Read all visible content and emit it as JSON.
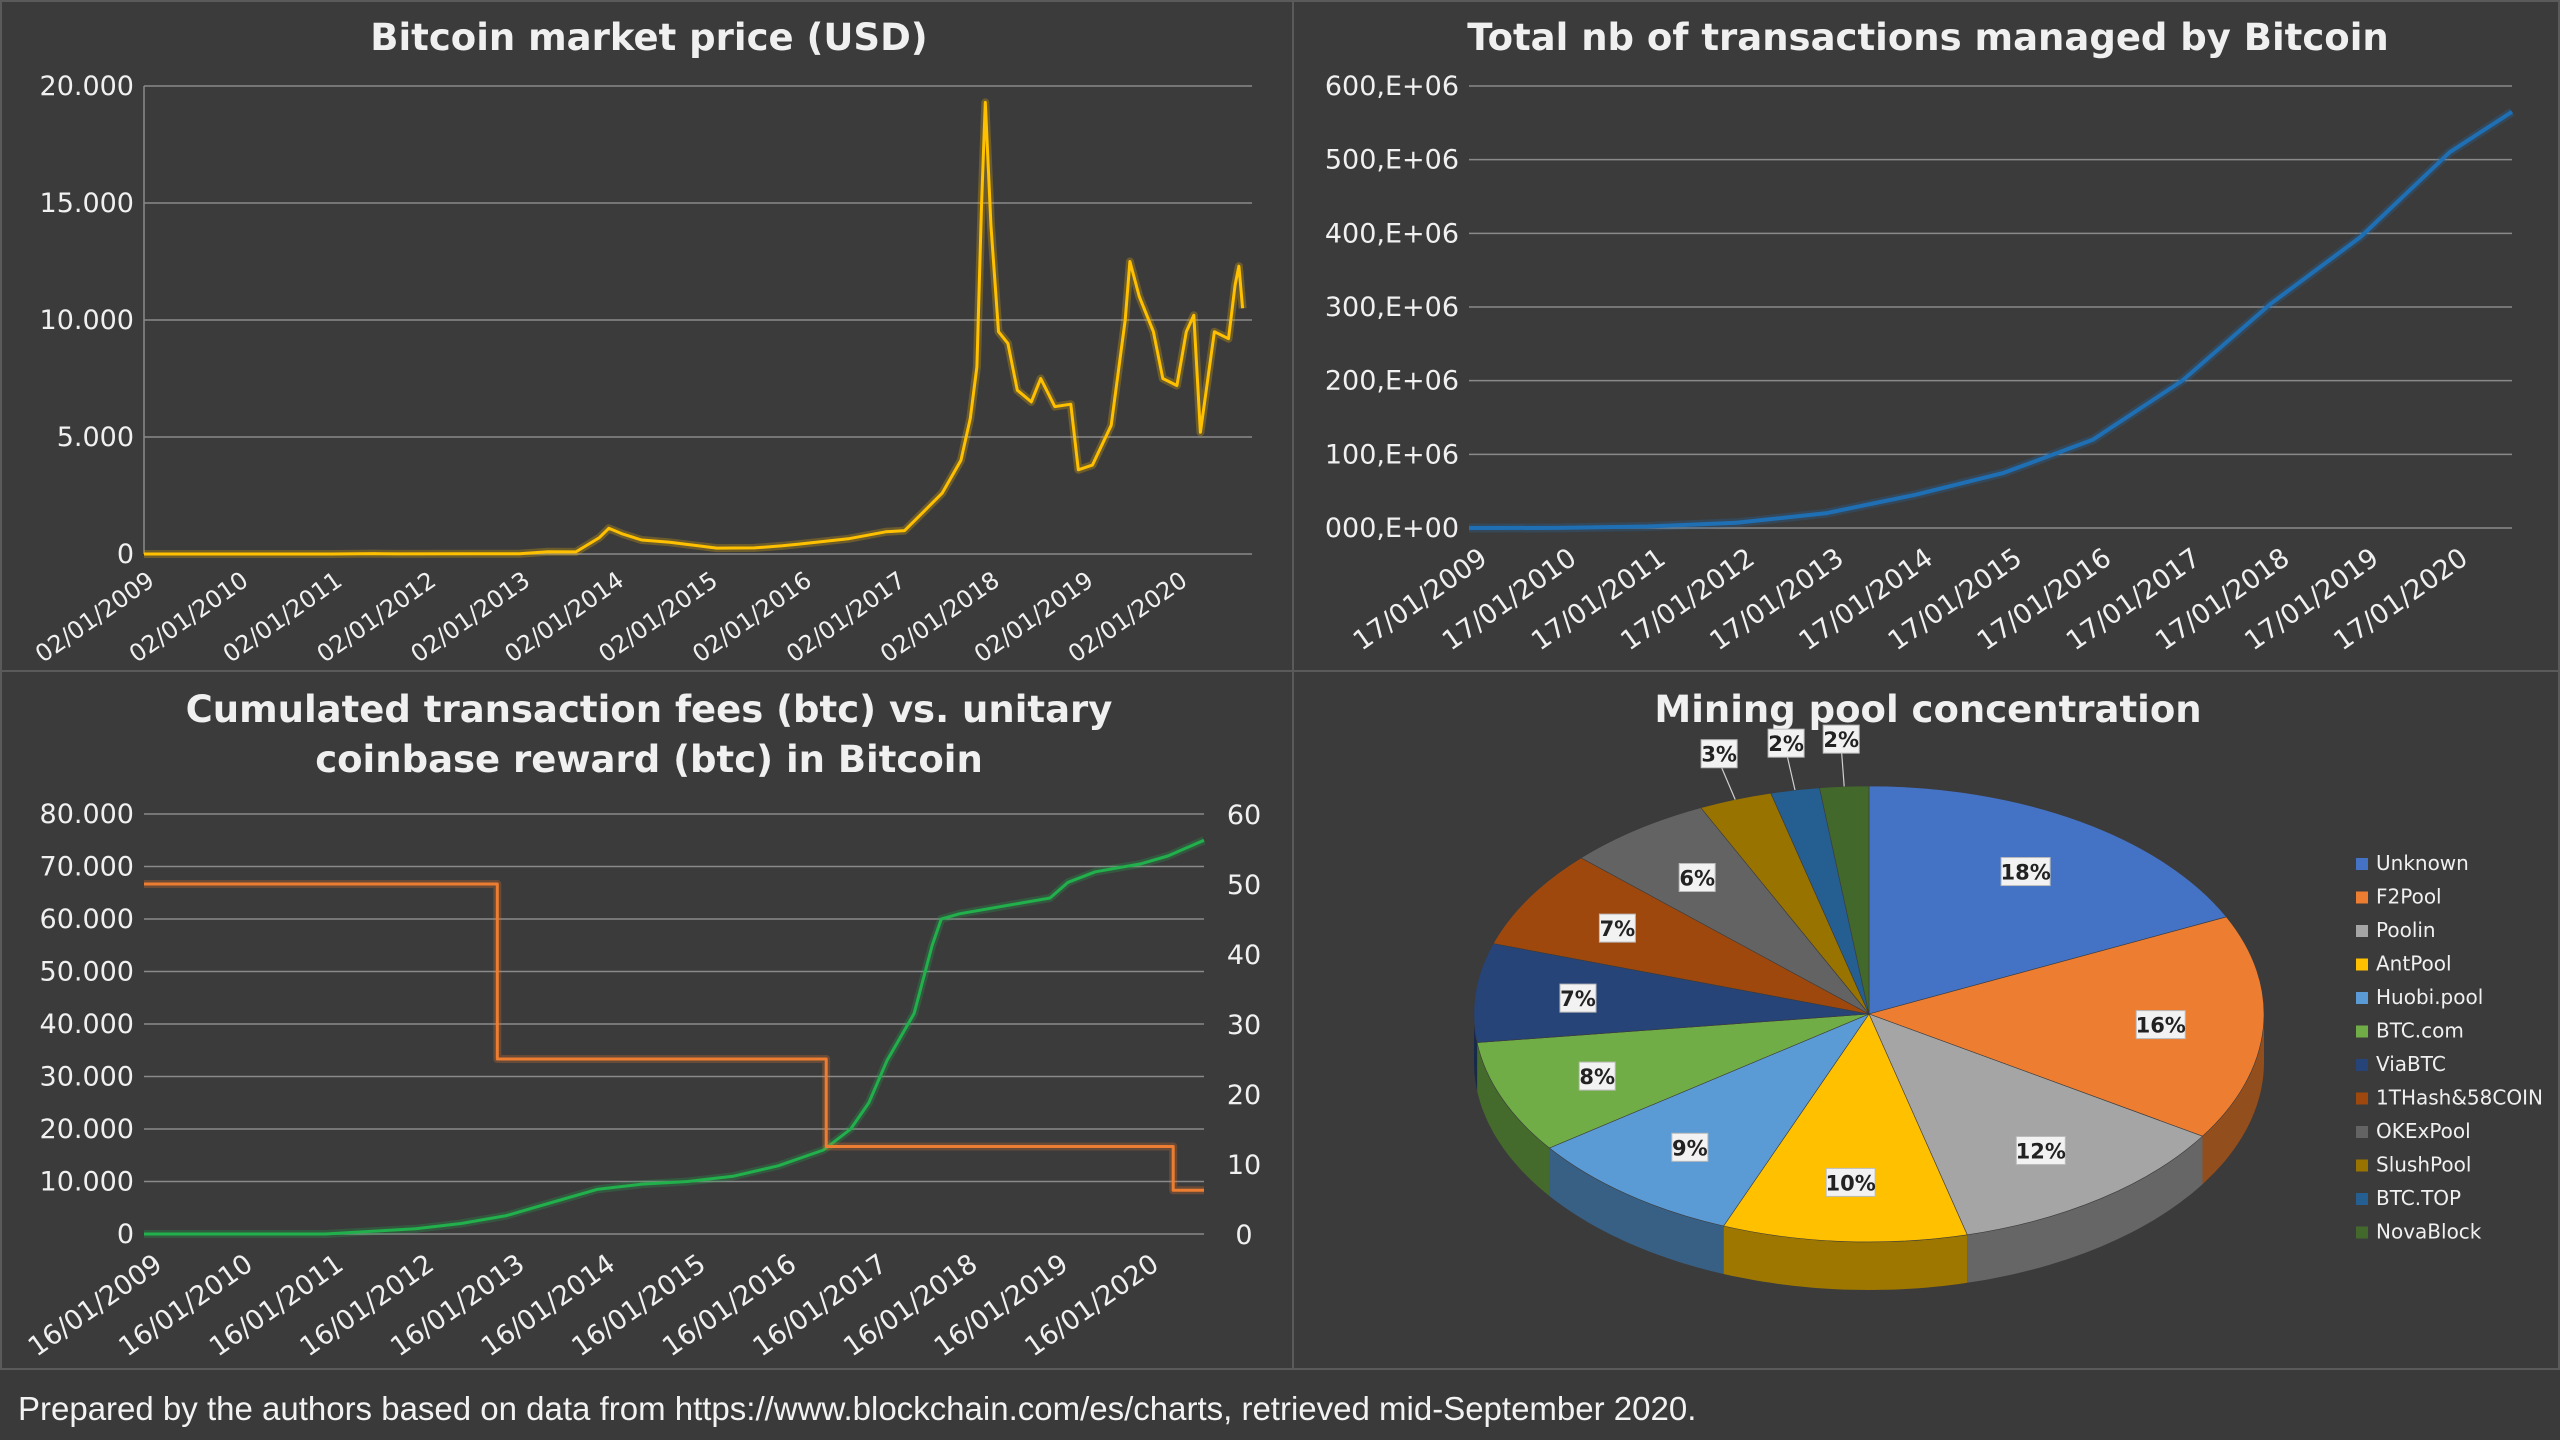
{
  "colors": {
    "background": "#3a3a3a",
    "grid": "#8a8a8a",
    "price_line": "#ffc000",
    "tx_line": "#1f6fb5",
    "coinbase_line": "#ed7d31",
    "fees_line": "#21b04b"
  },
  "footer": {
    "note": "Prepared by the authors based on data from https://www.blockchain.com/es/charts, retrieved mid-September 2020."
  },
  "chart_data": [
    {
      "id": "price",
      "type": "line",
      "title": "Bitcoin market price (USD)",
      "xlabel": "",
      "ylabel": "",
      "ylim": [
        0,
        20000
      ],
      "y_ticks": [
        "0",
        "5.000",
        "10.000",
        "15.000",
        "20.000"
      ],
      "x_ticks": [
        "02/01/2009",
        "02/01/2010",
        "02/01/2011",
        "02/01/2012",
        "02/01/2013",
        "02/01/2014",
        "02/01/2015",
        "02/01/2016",
        "02/01/2017",
        "02/01/2018",
        "02/01/2019",
        "02/01/2020"
      ],
      "grid": true,
      "series": [
        {
          "x": [
            2009.0,
            2010.5,
            2011.0,
            2011.45,
            2011.7,
            2012.5,
            2013.0,
            2013.3,
            2013.6,
            2013.85,
            2013.95,
            2014.1,
            2014.3,
            2014.6,
            2014.9,
            2015.1,
            2015.5,
            2015.8,
            2016.0,
            2016.5,
            2016.9,
            2017.1,
            2017.3,
            2017.5,
            2017.7,
            2017.8,
            2017.87,
            2017.92,
            2017.96,
            2018.02,
            2018.1,
            2018.2,
            2018.3,
            2018.45,
            2018.55,
            2018.7,
            2018.87,
            2018.95,
            2019.1,
            2019.3,
            2019.45,
            2019.5,
            2019.6,
            2019.75,
            2019.85,
            2020.0,
            2020.1,
            2020.18,
            2020.25,
            2020.4,
            2020.55,
            2020.62,
            2020.66,
            2020.7
          ],
          "y": [
            0,
            0,
            1,
            15,
            5,
            10,
            13,
            100,
            90,
            700,
            1100,
            850,
            600,
            500,
            350,
            250,
            260,
            350,
            430,
            650,
            950,
            1000,
            1800,
            2600,
            4000,
            5800,
            8000,
            15000,
            19300,
            14000,
            9500,
            9000,
            7000,
            6500,
            7500,
            6300,
            6400,
            3600,
            3800,
            5500,
            10000,
            12500,
            11000,
            9500,
            7500,
            7200,
            9500,
            10200,
            5200,
            9500,
            9200,
            11500,
            12300,
            10500
          ]
        }
      ]
    },
    {
      "id": "transactions",
      "type": "line",
      "title": "Total nb of transactions managed by Bitcoin",
      "xlabel": "",
      "ylabel": "",
      "ylim": [
        0,
        600000000
      ],
      "y_ticks": [
        "000,E+00",
        "100,E+06",
        "200,E+06",
        "300,E+06",
        "400,E+06",
        "500,E+06",
        "600,E+06"
      ],
      "x_ticks": [
        "17/01/2009",
        "17/01/2010",
        "17/01/2011",
        "17/01/2012",
        "17/01/2013",
        "17/01/2014",
        "17/01/2015",
        "17/01/2016",
        "17/01/2017",
        "17/01/2018",
        "17/01/2019",
        "17/01/2020"
      ],
      "grid": true,
      "series": [
        {
          "x": [
            2009.0,
            2010.0,
            2011.0,
            2012.0,
            2013.0,
            2014.0,
            2015.0,
            2016.0,
            2017.0,
            2018.0,
            2019.0,
            2020.0,
            2020.7
          ],
          "y": [
            0,
            100000,
            2000000,
            7000000,
            20000000,
            45000000,
            75000000,
            120000000,
            200000000,
            305000000,
            395000000,
            510000000,
            565000000
          ]
        }
      ]
    },
    {
      "id": "fees",
      "type": "line",
      "title": "Cumulated transaction fees (btc) vs. unitary coinbase reward (btc) in Bitcoin",
      "title_lines": [
        "Cumulated transaction fees (btc) vs. unitary",
        "coinbase reward (btc) in Bitcoin"
      ],
      "xlabel": "",
      "ylabel": "",
      "ylim": [
        0,
        80000
      ],
      "y2lim": [
        0,
        60
      ],
      "y_ticks": [
        "0",
        "10.000",
        "20.000",
        "30.000",
        "40.000",
        "50.000",
        "60.000",
        "70.000",
        "80.000"
      ],
      "y2_ticks": [
        "0",
        "10",
        "20",
        "30",
        "40",
        "50",
        "60"
      ],
      "x_ticks": [
        "16/01/2009",
        "16/01/2010",
        "16/01/2011",
        "16/01/2012",
        "16/01/2013",
        "16/01/2014",
        "16/01/2015",
        "16/01/2016",
        "16/01/2017",
        "16/01/2018",
        "16/01/2019",
        "16/01/2020"
      ],
      "grid": true,
      "series": [
        {
          "axis": "left",
          "x": [
            2009.0,
            2011.0,
            2011.5,
            2012.0,
            2012.5,
            2013.0,
            2013.5,
            2014.0,
            2014.5,
            2015.0,
            2015.5,
            2016.0,
            2016.5,
            2016.8,
            2017.0,
            2017.2,
            2017.5,
            2017.7,
            2017.8,
            2017.9,
            2018.0,
            2018.5,
            2019.0,
            2019.2,
            2019.5,
            2020.0,
            2020.3,
            2020.7
          ],
          "y": [
            0,
            0,
            500,
            1000,
            2000,
            3500,
            6000,
            8500,
            9500,
            10000,
            11000,
            13000,
            16000,
            20000,
            25000,
            33000,
            42000,
            55000,
            60000,
            60500,
            61000,
            62500,
            64000,
            67000,
            69000,
            70500,
            72000,
            75000
          ]
        },
        {
          "axis": "right",
          "x": [
            2009.0,
            2012.9,
            2012.9,
            2016.53,
            2016.53,
            2020.36,
            2020.36,
            2020.7
          ],
          "y": [
            50,
            50,
            25,
            25,
            12.5,
            12.5,
            6.25,
            6.25
          ]
        }
      ]
    },
    {
      "id": "pool",
      "type": "pie",
      "title": "Mining pool concentration",
      "labels": [
        "Unknown",
        "F2Pool",
        "Poolin",
        "AntPool",
        "Huobi.pool",
        "BTC.com",
        "ViaBTC",
        "1THash&58COIN",
        "OKExPool",
        "SlushPool",
        "BTC.TOP",
        "NovaBlock"
      ],
      "values": [
        18,
        16,
        12,
        10,
        9,
        8,
        7,
        7,
        6,
        3,
        2,
        2
      ],
      "value_labels": [
        "18%",
        "16%",
        "12%",
        "10%",
        "9%",
        "8%",
        "7%",
        "7%",
        "6%",
        "3%",
        "2%",
        "2%"
      ],
      "colors": [
        "#4472c4",
        "#ed7d31",
        "#a5a5a5",
        "#ffc000",
        "#5b9bd5",
        "#70ad47",
        "#264478",
        "#9e480e",
        "#636363",
        "#997300",
        "#255e91",
        "#43682b"
      ],
      "legend": "right"
    }
  ]
}
